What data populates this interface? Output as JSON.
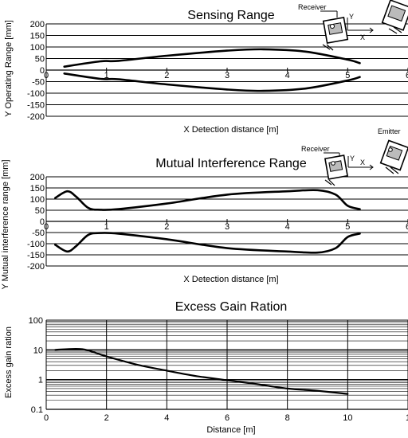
{
  "chart_data": [
    {
      "type": "line",
      "title": "Sensing Range",
      "xlabel": "X Detection distance [m]",
      "ylabel": "Y Operating Range [mm]",
      "xlim": [
        0,
        6
      ],
      "ylim": [
        -200,
        200
      ],
      "x_ticks": [
        "0",
        "1",
        "2",
        "3",
        "4",
        "5",
        "6"
      ],
      "y_ticks": [
        "200",
        "150",
        "100",
        "50",
        "0",
        "-50",
        "-100",
        "-150",
        "-200"
      ],
      "grid": "horizontal",
      "annotations": {
        "receiver": "Receiver",
        "y_axis": "Y",
        "x_axis": "X"
      },
      "series": [
        {
          "values": [
            [
              0.3,
              15
            ],
            [
              0.9,
              38
            ],
            [
              1.2,
              40
            ],
            [
              2.0,
              62
            ],
            [
              3.0,
              84
            ],
            [
              3.6,
              90
            ],
            [
              4.3,
              80
            ],
            [
              5.0,
              45
            ],
            [
              5.2,
              30
            ]
          ]
        },
        {
          "values": [
            [
              0.3,
              -15
            ],
            [
              0.9,
              -38
            ],
            [
              1.2,
              -40
            ],
            [
              2.0,
              -62
            ],
            [
              3.0,
              -84
            ],
            [
              3.6,
              -90
            ],
            [
              4.3,
              -80
            ],
            [
              5.0,
              -45
            ],
            [
              5.2,
              -30
            ]
          ]
        }
      ]
    },
    {
      "type": "line",
      "title": "Mutual Interference Range",
      "xlabel": "X Detection distance [m]",
      "ylabel": "Y Mutual interference range [mm]",
      "xlim": [
        0,
        6
      ],
      "ylim": [
        -200,
        200
      ],
      "x_ticks": [
        "0",
        "1",
        "2",
        "3",
        "4",
        "5",
        "6"
      ],
      "y_ticks": [
        "200",
        "150",
        "100",
        "50",
        "0",
        "-50",
        "-100",
        "-150",
        "-200"
      ],
      "grid": "horizontal",
      "annotations": {
        "receiver": "Receiver",
        "emitter": "Emitter",
        "y_axis": "Y",
        "x_axis": "X"
      },
      "series": [
        {
          "values": [
            [
              0.15,
              105
            ],
            [
              0.35,
              135
            ],
            [
              0.5,
              110
            ],
            [
              0.7,
              60
            ],
            [
              0.9,
              52
            ],
            [
              1.2,
              55
            ],
            [
              2.0,
              80
            ],
            [
              3.0,
              120
            ],
            [
              4.0,
              135
            ],
            [
              4.5,
              140
            ],
            [
              4.8,
              120
            ],
            [
              5.0,
              70
            ],
            [
              5.2,
              55
            ]
          ]
        },
        {
          "values": [
            [
              0.15,
              -105
            ],
            [
              0.35,
              -135
            ],
            [
              0.5,
              -110
            ],
            [
              0.7,
              -60
            ],
            [
              0.9,
              -52
            ],
            [
              1.2,
              -55
            ],
            [
              2.0,
              -80
            ],
            [
              3.0,
              -120
            ],
            [
              4.0,
              -135
            ],
            [
              4.5,
              -140
            ],
            [
              4.8,
              -120
            ],
            [
              5.0,
              -70
            ],
            [
              5.2,
              -55
            ]
          ]
        }
      ]
    },
    {
      "type": "line",
      "title": "Excess Gain Ration",
      "xlabel": "Distance [m]",
      "ylabel": "Excess gain ration",
      "xlim": [
        0,
        12
      ],
      "ylim": [
        0.1,
        100
      ],
      "yscale": "log",
      "x_ticks": [
        "0",
        "2",
        "4",
        "6",
        "8",
        "10",
        "1"
      ],
      "y_ticks": [
        "100",
        "10",
        "1",
        "0.1"
      ],
      "grid": "both",
      "series": [
        {
          "values": [
            [
              0.3,
              10
            ],
            [
              1.2,
              10.5
            ],
            [
              2.0,
              6
            ],
            [
              3.0,
              3.2
            ],
            [
              4.0,
              2.0
            ],
            [
              5.0,
              1.3
            ],
            [
              6.0,
              0.95
            ],
            [
              7.0,
              0.7
            ],
            [
              8.0,
              0.5
            ],
            [
              9.0,
              0.42
            ],
            [
              10.0,
              0.33
            ]
          ]
        }
      ]
    }
  ]
}
